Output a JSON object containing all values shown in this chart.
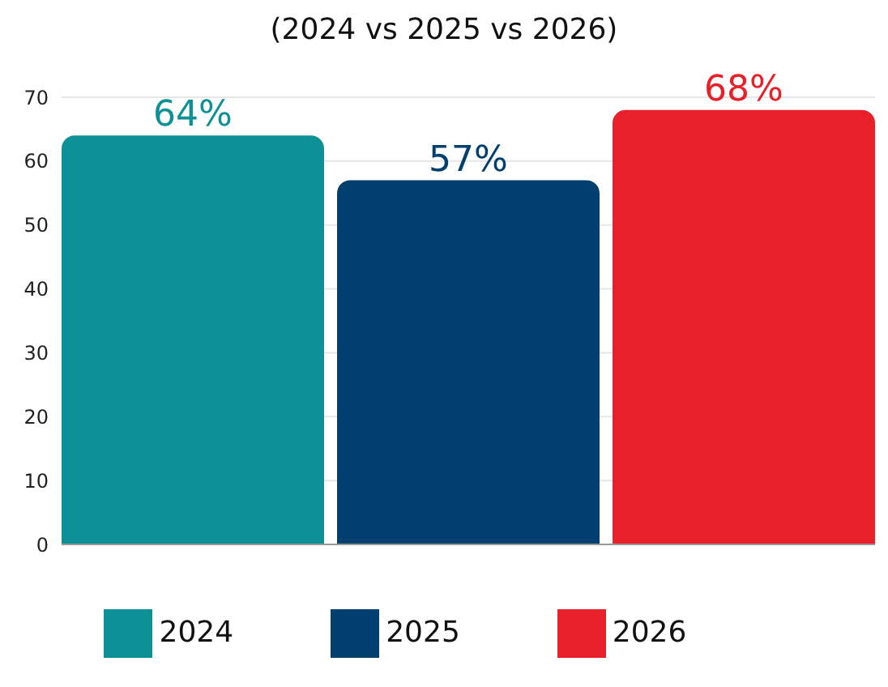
{
  "chart_data": {
    "type": "bar",
    "title": "(2024 vs 2025 vs 2026)",
    "categories": [
      null
    ],
    "series": [
      {
        "name": "2024",
        "color": "#0e9196",
        "values": [
          64
        ],
        "value_labels": [
          "64%"
        ]
      },
      {
        "name": "2025",
        "color": "#003f6e",
        "values": [
          57
        ],
        "value_labels": [
          "57%"
        ]
      },
      {
        "name": "2026",
        "color": "#e8202a",
        "values": [
          68
        ],
        "value_labels": [
          "68%"
        ]
      }
    ],
    "ylim": [
      0,
      70
    ],
    "yticks": [
      0,
      10,
      20,
      30,
      40,
      50,
      60,
      70
    ],
    "grid": "y",
    "legend": "bottom"
  }
}
